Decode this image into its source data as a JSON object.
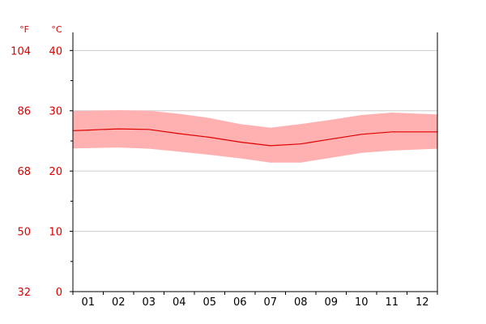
{
  "chart_data": {
    "type": "area",
    "title": "",
    "xlabel": "",
    "ylabel": "",
    "categories": [
      "01",
      "02",
      "03",
      "04",
      "05",
      "06",
      "07",
      "08",
      "09",
      "10",
      "11",
      "12"
    ],
    "unit_left": "°F",
    "unit_right": "°C",
    "ylim_c": [
      0,
      43
    ],
    "y_ticks_c": [
      0,
      10,
      20,
      30,
      40
    ],
    "y_ticks_f": [
      32,
      50,
      68,
      86,
      104
    ],
    "minor_ticks_c": [
      5,
      15,
      25,
      35
    ],
    "grid": true,
    "series": [
      {
        "values_c": [
          26.8,
          27.0,
          26.9,
          26.2,
          25.6,
          24.8,
          24.2,
          24.5,
          25.3,
          26.1,
          26.5,
          26.5
        ]
      },
      {
        "values_c": [
          30.0,
          30.1,
          30.0,
          29.5,
          28.8,
          27.8,
          27.2,
          27.8,
          28.5,
          29.3,
          29.7,
          29.5
        ]
      },
      {
        "values_c": [
          23.8,
          23.9,
          23.7,
          23.2,
          22.7,
          22.1,
          21.4,
          21.4,
          22.2,
          23.0,
          23.4,
          23.6
        ]
      }
    ],
    "colors": {
      "line": "#e00000",
      "band": "#ffb1b1",
      "grid": "#cccccc",
      "axis": "#000000",
      "label": "#dd0000",
      "tick_text": "#000000"
    }
  }
}
